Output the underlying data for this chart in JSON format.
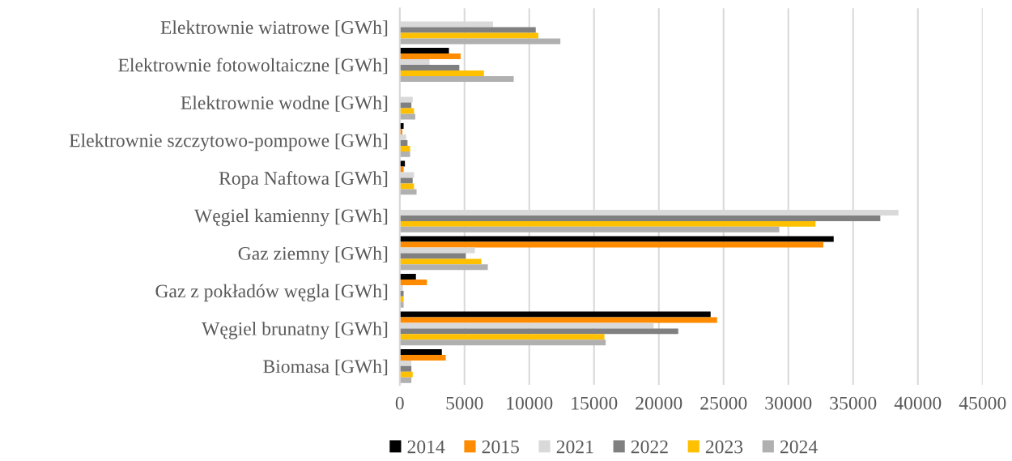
{
  "chart_data": {
    "type": "bar",
    "orientation": "horizontal",
    "categories": [
      "Elektrownie wiatrowe [GWh]",
      "Elektrownie fotowoltaiczne [GWh]",
      "Elektrownie wodne [GWh]",
      "Elektrownie szczytowo-pompowe [GWh]",
      "Ropa Naftowa [GWh]",
      "Węgiel kamienny [GWh]",
      "Gaz ziemny [GWh]",
      "Gaz z pokładów węgla [GWh]",
      "Węgiel brunatny [GWh]",
      "Biomasa [GWh]"
    ],
    "series": [
      {
        "name": "2014",
        "color": "#000000",
        "values": [
          null,
          3800,
          null,
          300,
          400,
          null,
          33500,
          1250,
          24000,
          3250
        ]
      },
      {
        "name": "2015",
        "color": "#ff8c00",
        "values": [
          null,
          4700,
          null,
          200,
          300,
          null,
          32700,
          2100,
          24500,
          3550
        ]
      },
      {
        "name": "2021",
        "color": "#d9d9d9",
        "values": [
          7200,
          2300,
          1000,
          500,
          1100,
          38500,
          5800,
          250,
          19600,
          900
        ]
      },
      {
        "name": "2022",
        "color": "#808080",
        "values": [
          10500,
          4600,
          900,
          600,
          1000,
          37100,
          5100,
          300,
          21500,
          900
        ]
      },
      {
        "name": "2023",
        "color": "#ffc000",
        "values": [
          10700,
          6500,
          1100,
          800,
          1100,
          32100,
          6300,
          300,
          15800,
          1000
        ]
      },
      {
        "name": "2024",
        "color": "#b0b0b0",
        "values": [
          12400,
          8800,
          1200,
          800,
          1300,
          29300,
          6800,
          300,
          15900,
          900
        ]
      }
    ],
    "xlim": [
      0,
      45000
    ],
    "xticks": [
      0,
      5000,
      10000,
      15000,
      20000,
      25000,
      30000,
      35000,
      40000,
      45000
    ],
    "grid": "x",
    "legend": "bottom"
  }
}
